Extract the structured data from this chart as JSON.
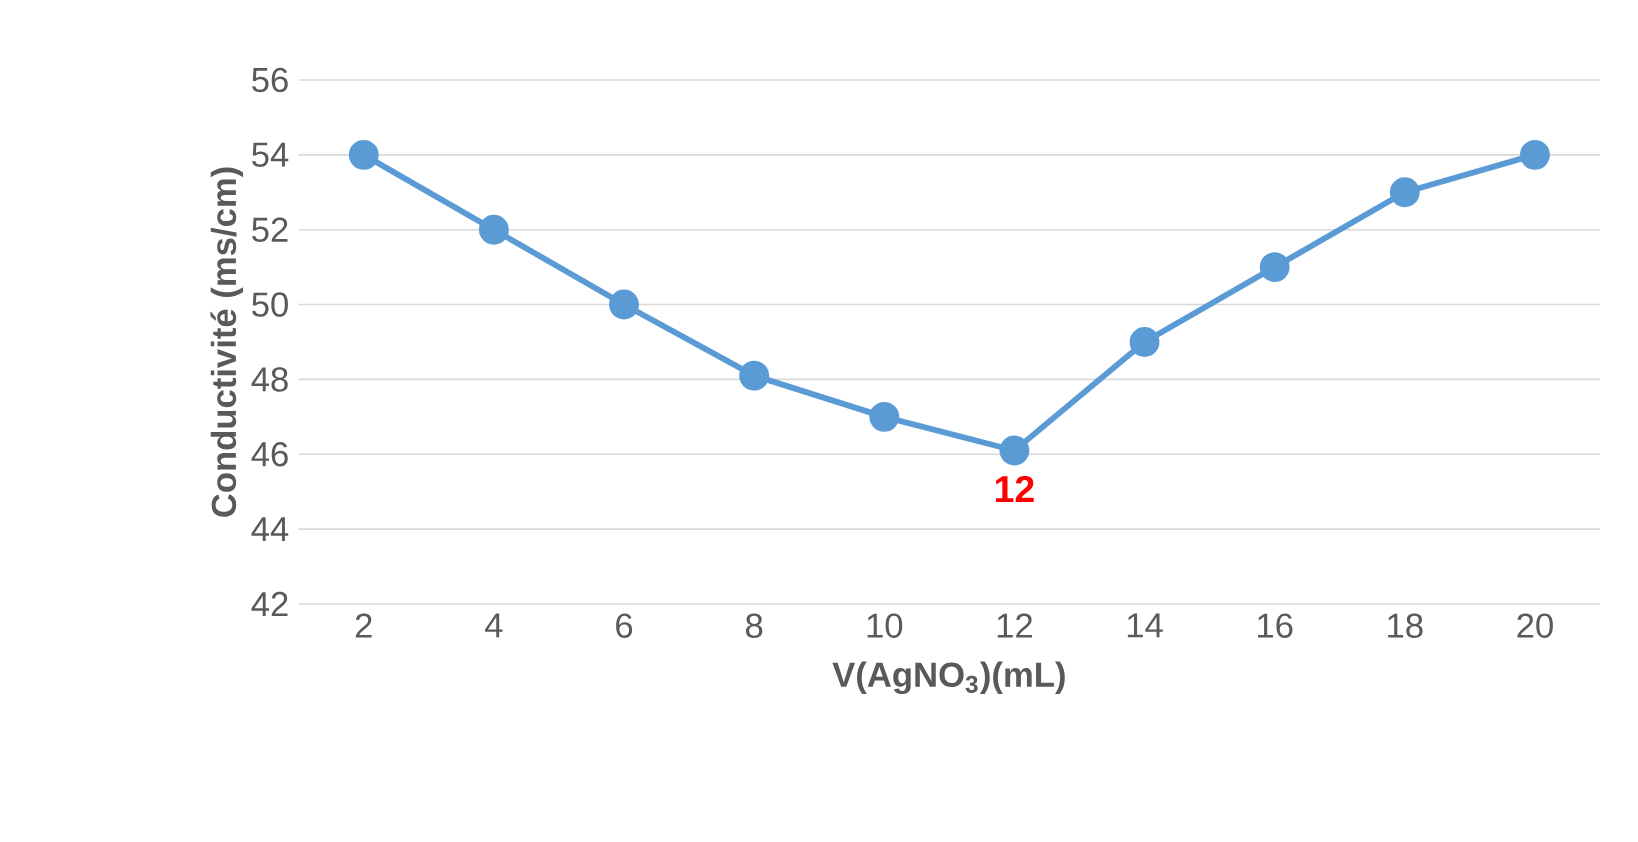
{
  "chart_data": {
    "type": "line",
    "xlabel": "V(AgNO$_{3}$)(mL)",
    "ylabel": "Conductivité (ms/cm)",
    "categories": [
      "2",
      "4",
      "6",
      "8",
      "10",
      "12",
      "14",
      "16",
      "18",
      "20"
    ],
    "values": [
      54,
      52,
      50,
      48.1,
      47,
      46.1,
      49,
      51,
      53,
      54
    ],
    "color": "#5b9bd5",
    "marker": "circle",
    "line_style": "solid",
    "ylim": [
      42,
      56
    ],
    "yticks": [
      42,
      44,
      46,
      48,
      50,
      52,
      54,
      56
    ],
    "grid": "y",
    "annotations": [
      {
        "text": "12",
        "x": "12",
        "y": 46.1
      }
    ]
  }
}
